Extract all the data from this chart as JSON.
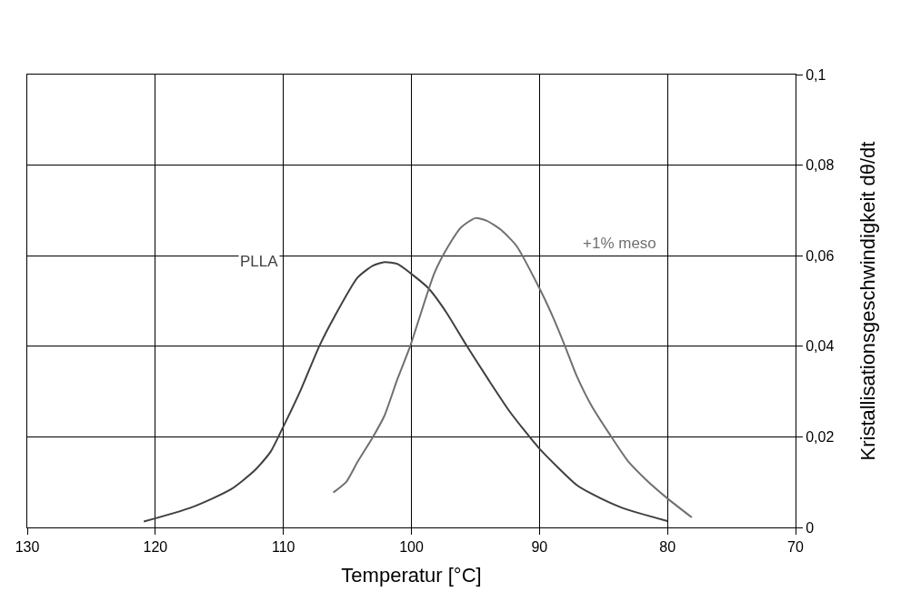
{
  "chart_data": {
    "type": "line",
    "xlabel": "Temperatur [°C]",
    "ylabel": "Kristallisationsgeschwindigkeit dθ/dt",
    "xlim": [
      130,
      70
    ],
    "xticks": [
      130,
      120,
      110,
      100,
      90,
      80,
      70
    ],
    "ylim": [
      0,
      0.1
    ],
    "yticks": [
      {
        "value": 0,
        "label": "0"
      },
      {
        "value": 0.02,
        "label": "0,02"
      },
      {
        "value": 0.04,
        "label": "0,04"
      },
      {
        "value": 0.06,
        "label": "0,06"
      },
      {
        "value": 0.08,
        "label": "0,08"
      },
      {
        "value": 0.1,
        "label": "0,1"
      }
    ],
    "grid": true,
    "legend": false,
    "marker": "none",
    "line_style": "solid",
    "series": [
      {
        "name": "PLLA",
        "color": "#404040",
        "x": [
          120.9,
          117.2,
          114.1,
          112.2,
          111.0,
          110.1,
          108.7,
          107.2,
          106.0,
          104.2,
          103.0,
          102.1,
          101.1,
          100.1,
          98.7,
          97.3,
          95.7,
          94.0,
          92.3,
          90.0,
          87.1,
          85.9,
          83.6,
          80.0
        ],
        "values": [
          0.0013,
          0.0044,
          0.0084,
          0.0127,
          0.0167,
          0.0217,
          0.03,
          0.04,
          0.0466,
          0.0552,
          0.0578,
          0.0586,
          0.0582,
          0.0562,
          0.0529,
          0.0476,
          0.0402,
          0.0327,
          0.0255,
          0.0174,
          0.0094,
          0.0074,
          0.0044,
          0.0014
        ]
      },
      {
        "name": "+1% meso",
        "color": "#707070",
        "x": [
          106.1,
          105.1,
          104.2,
          103.0,
          102.1,
          101.1,
          100.1,
          98.2,
          97.1,
          96.1,
          95.0,
          94.1,
          93.0,
          91.8,
          90.0,
          89.0,
          88.0,
          87.1,
          85.9,
          84.5,
          83.1,
          81.7,
          80.0,
          78.1
        ],
        "values": [
          0.0077,
          0.01,
          0.0145,
          0.02,
          0.0247,
          0.0327,
          0.04,
          0.0562,
          0.0622,
          0.0663,
          0.0683,
          0.0677,
          0.0657,
          0.0622,
          0.0528,
          0.0468,
          0.04,
          0.0335,
          0.0267,
          0.0205,
          0.0147,
          0.0106,
          0.0064,
          0.0022
        ]
      }
    ]
  }
}
